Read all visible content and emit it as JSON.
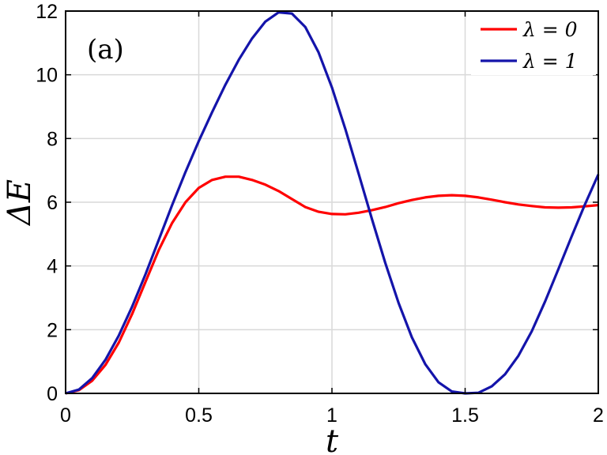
{
  "chart_data": {
    "type": "line",
    "panel_label": "(a)",
    "xlabel": "t",
    "ylabel": "ΔE",
    "xlim": [
      0,
      2
    ],
    "ylim": [
      0,
      12
    ],
    "xticks": [
      0,
      0.5,
      1,
      1.5,
      2
    ],
    "yticks": [
      0,
      2,
      4,
      6,
      8,
      10,
      12
    ],
    "xtick_labels": [
      "0",
      "0.5",
      "1",
      "1.5",
      "2"
    ],
    "ytick_labels": [
      "0",
      "2",
      "4",
      "6",
      "8",
      "10",
      "12"
    ],
    "grid": true,
    "legend_position": "top-right",
    "series": [
      {
        "name": "λ = 0",
        "color": "#ff0000",
        "x": [
          0,
          0.05,
          0.1,
          0.15,
          0.2,
          0.25,
          0.3,
          0.35,
          0.4,
          0.45,
          0.5,
          0.55,
          0.6,
          0.65,
          0.7,
          0.75,
          0.8,
          0.85,
          0.9,
          0.95,
          1.0,
          1.05,
          1.1,
          1.15,
          1.2,
          1.25,
          1.3,
          1.35,
          1.4,
          1.45,
          1.5,
          1.55,
          1.6,
          1.65,
          1.7,
          1.75,
          1.8,
          1.85,
          1.9,
          1.95,
          2.0
        ],
        "y": [
          0,
          0.1,
          0.4,
          0.9,
          1.6,
          2.5,
          3.5,
          4.5,
          5.35,
          6.0,
          6.45,
          6.7,
          6.8,
          6.8,
          6.7,
          6.55,
          6.35,
          6.1,
          5.85,
          5.7,
          5.63,
          5.62,
          5.67,
          5.75,
          5.85,
          5.97,
          6.07,
          6.15,
          6.2,
          6.22,
          6.2,
          6.15,
          6.08,
          6.0,
          5.93,
          5.88,
          5.84,
          5.83,
          5.84,
          5.87,
          5.91
        ]
      },
      {
        "name": "λ = 1",
        "color": "#1414aa",
        "x": [
          0,
          0.05,
          0.1,
          0.15,
          0.2,
          0.25,
          0.3,
          0.35,
          0.4,
          0.45,
          0.5,
          0.55,
          0.6,
          0.65,
          0.7,
          0.75,
          0.8,
          0.85,
          0.9,
          0.95,
          1.0,
          1.05,
          1.1,
          1.15,
          1.2,
          1.25,
          1.3,
          1.35,
          1.4,
          1.45,
          1.5,
          1.55,
          1.6,
          1.65,
          1.7,
          1.75,
          1.8,
          1.85,
          1.9,
          1.95,
          2.0
        ],
        "y": [
          0.0,
          0.12,
          0.48,
          1.06,
          1.82,
          2.73,
          3.74,
          4.82,
          5.91,
          6.95,
          7.92,
          8.83,
          9.69,
          10.47,
          11.14,
          11.67,
          11.96,
          11.92,
          11.5,
          10.7,
          9.6,
          8.3,
          6.9,
          5.48,
          4.1,
          2.84,
          1.76,
          0.92,
          0.35,
          0.06,
          0.0,
          0.02,
          0.22,
          0.6,
          1.18,
          1.95,
          2.88,
          3.9,
          4.93,
          5.93,
          6.87
        ]
      }
    ]
  }
}
